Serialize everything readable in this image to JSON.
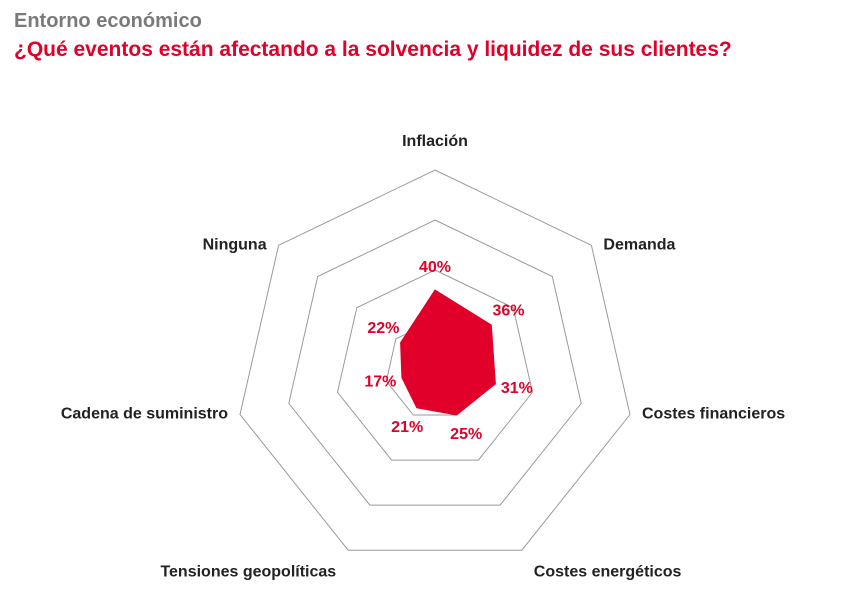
{
  "header": {
    "kicker": "Entorno económico",
    "title": "¿Qué eventos están afectando a la solvencia y liquidez de sus clientes?"
  },
  "colors": {
    "accent": "#e0002a",
    "kicker": "#7a7a7a",
    "grid": "#9a9a9a",
    "label": "#222222"
  },
  "chart_data": {
    "type": "radar",
    "title": "",
    "categories": [
      "Inflación",
      "Demanda",
      "Costes financieros",
      "Costes energéticos",
      "Tensiones geopolíticas",
      "Cadena de suministro",
      "Ninguna"
    ],
    "values": [
      40,
      36,
      31,
      25,
      21,
      17,
      22
    ],
    "value_labels": [
      "40%",
      "36%",
      "31%",
      "25%",
      "21%",
      "17%",
      "22%"
    ],
    "unit": "%",
    "rlim": [
      0,
      100
    ],
    "grid_rings": [
      25,
      50,
      75,
      100
    ],
    "grid": true,
    "legend": "none"
  }
}
